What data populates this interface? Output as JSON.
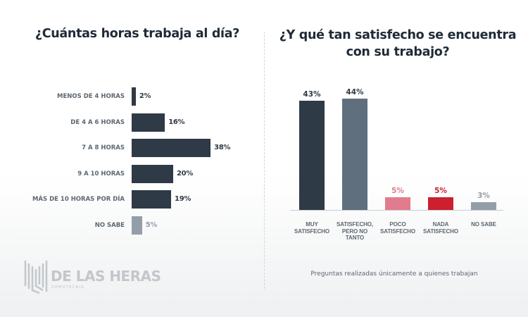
{
  "chart_data": [
    {
      "type": "bar",
      "orientation": "horizontal",
      "title": "¿Cuántas horas trabaja al día?",
      "categories": [
        "MENOS DE 4 HORAS",
        "DE 4 A 6 HORAS",
        "7 A 8 HORAS",
        "9 A 10 HORAS",
        "MÁS DE 10 HORAS POR DÍA",
        "NO SABE"
      ],
      "values": [
        2,
        16,
        38,
        20,
        19,
        5
      ],
      "labels": [
        "2%",
        "16%",
        "38%",
        "20%",
        "19%",
        "5%"
      ],
      "colors": [
        "#2e3a45",
        "#2e3a45",
        "#2e3a45",
        "#2e3a45",
        "#2e3a45",
        "#939ea8"
      ]
    },
    {
      "type": "bar",
      "orientation": "vertical",
      "title": "¿Y qué tan satisfecho se encuentra con su trabajo?",
      "categories": [
        "MUY SATISFECHO",
        "SATISFECHO, PERO NO TANTO",
        "POCO SATISFECHO",
        "NADA SATISFECHO",
        "NO SABE"
      ],
      "values": [
        43,
        44,
        5,
        5,
        3
      ],
      "labels": [
        "43%",
        "44%",
        "5%",
        "5%",
        "3%"
      ],
      "colors": [
        "#2e3a45",
        "#5f6f7d",
        "#e07c8d",
        "#cc1f30",
        "#939ea8"
      ],
      "label_colors": [
        "#2e3a45",
        "#2e3a45",
        "#e07c8d",
        "#cc1f30",
        "#939ea8"
      ]
    }
  ],
  "note": "Preguntas realizadas únicamente a quienes trabajan",
  "logo": {
    "name": "DE LAS HERAS",
    "sub": "DEMOTECNIA"
  }
}
